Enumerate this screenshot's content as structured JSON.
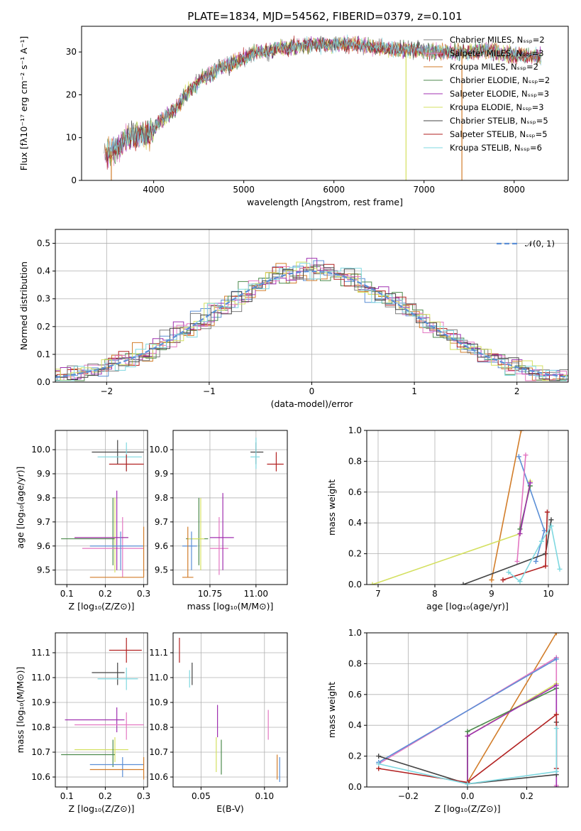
{
  "chart_data": [
    {
      "id": "spectrum",
      "type": "line",
      "title": "PLATE=1834, MJD=54562, FIBERID=0379, z=0.101",
      "xlabel": "wavelength [Angstrom, rest frame]",
      "ylabel": "Flux [fλ10⁻¹⁷ erg cm⁻² s⁻¹ A⁻¹]",
      "xlim": [
        3200,
        8600
      ],
      "ylim": [
        0,
        36
      ],
      "xticks": [
        4000,
        5000,
        6000,
        7000,
        8000
      ],
      "yticks": [
        0,
        10,
        20,
        30
      ],
      "grid": false,
      "legend_position": "right",
      "anchors": [
        [
          3450,
          6
        ],
        [
          3550,
          7
        ],
        [
          3650,
          8.5
        ],
        [
          3750,
          10.5
        ],
        [
          3850,
          11
        ],
        [
          3950,
          10.5
        ],
        [
          4050,
          13.5
        ],
        [
          4150,
          15
        ],
        [
          4250,
          17
        ],
        [
          4350,
          20
        ],
        [
          4450,
          22
        ],
        [
          4550,
          24
        ],
        [
          4650,
          25
        ],
        [
          4750,
          26.5
        ],
        [
          4850,
          27
        ],
        [
          4950,
          28
        ],
        [
          5050,
          29
        ],
        [
          5150,
          30
        ],
        [
          5250,
          30
        ],
        [
          5350,
          31
        ],
        [
          5500,
          31
        ],
        [
          5650,
          31.5
        ],
        [
          5800,
          32
        ],
        [
          5950,
          31.5
        ],
        [
          6100,
          32
        ],
        [
          6300,
          31.5
        ],
        [
          6500,
          31
        ],
        [
          6700,
          30.5
        ],
        [
          6900,
          30.5
        ],
        [
          7100,
          30
        ],
        [
          7300,
          30
        ],
        [
          7500,
          30
        ],
        [
          7700,
          30.5
        ],
        [
          7900,
          29.5
        ],
        [
          8100,
          29
        ],
        [
          8300,
          29
        ]
      ],
      "series": [
        {
          "name": "Chabrier MILES, Nₛₛₚ=2",
          "color": "#7f7f7f"
        },
        {
          "name": "Salpeter MILES, Nₛₛₚ=3",
          "color": "#e377c2"
        },
        {
          "name": "Kroupa MILES, Nₛₛₚ=2",
          "color": "#d27d2a"
        },
        {
          "name": "Chabrier ELODIE, Nₛₛₚ=2",
          "color": "#4c8a4c"
        },
        {
          "name": "Salpeter ELODIE, Nₛₛₚ=3",
          "color": "#a030b0"
        },
        {
          "name": "Kroupa ELODIE, Nₛₛₚ=3",
          "color": "#d4e060"
        },
        {
          "name": "Chabrier STELIB, Nₛₛₚ=5",
          "color": "#444444"
        },
        {
          "name": "Salpeter STELIB, Nₛₛₚ=5",
          "color": "#b22222"
        },
        {
          "name": "Kroupa STELIB, Nₛₛₚ=6",
          "color": "#7fd8e0"
        }
      ]
    },
    {
      "id": "residuals",
      "type": "step",
      "xlabel": "(data-model)/error",
      "ylabel": "Normed distribution",
      "xlim": [
        -2.5,
        2.5
      ],
      "ylim": [
        0,
        0.55
      ],
      "xticks": [
        -2,
        -1,
        0,
        1,
        2
      ],
      "yticks": [
        0.0,
        0.1,
        0.2,
        0.3,
        0.4,
        0.5
      ],
      "grid": true,
      "legend": [
        {
          "name": "𝒩(0, 1)",
          "color": "#5b8fd6",
          "style": "dashed"
        }
      ],
      "legend_position": "top-right",
      "bin_width": 0.1,
      "histogram_colors": [
        "#5b8fd6",
        "#d27d2a",
        "#4c8a4c",
        "#b22222",
        "#a030b0",
        "#e377c2",
        "#7f7f7f",
        "#d4e060",
        "#7fd8e0",
        "#444444"
      ]
    },
    {
      "id": "age-vs-z",
      "type": "errorbar",
      "xlabel": "Z [log₁₀(Z/Z⊙)]",
      "ylabel": "age  [log₁₀(age/yr)]",
      "xlim": [
        0.07,
        0.31
      ],
      "ylim": [
        9.44,
        10.08
      ],
      "xticks": [
        0.1,
        0.2,
        0.3
      ],
      "yticks": [
        9.5,
        9.6,
        9.7,
        9.8,
        9.9,
        10.0
      ],
      "grid": true,
      "points": [
        {
          "x": 0.232,
          "y": 9.99,
          "xe": [
            0.165,
            0.3
          ],
          "ye": [
            9.94,
            10.04
          ],
          "color": "#444444"
        },
        {
          "x": 0.255,
          "y": 9.97,
          "xe": [
            0.18,
            0.295
          ],
          "ye": [
            9.91,
            10.03
          ],
          "color": "#7fd8e0"
        },
        {
          "x": 0.255,
          "y": 9.94,
          "xe": [
            0.21,
            0.3
          ],
          "ye": [
            9.91,
            9.98
          ],
          "color": "#b22222"
        },
        {
          "x": 0.22,
          "y": 9.63,
          "xe": [
            0.085,
            0.225
          ],
          "ye": [
            9.52,
            9.8
          ],
          "color": "#4c8a4c"
        },
        {
          "x": 0.225,
          "y": 9.635,
          "xe": [
            0.12,
            0.26
          ],
          "ye": [
            9.49,
            9.8
          ],
          "color": "#d4e060"
        },
        {
          "x": 0.245,
          "y": 9.59,
          "xe": [
            0.14,
            0.3
          ],
          "ye": [
            9.47,
            9.72
          ],
          "color": "#e377c2"
        },
        {
          "x": 0.23,
          "y": 9.635,
          "xe": [
            0.12,
            0.26
          ],
          "ye": [
            9.5,
            9.83
          ],
          "color": "#a030b0"
        },
        {
          "x": 0.24,
          "y": 9.6,
          "xe": [
            0.16,
            0.3
          ],
          "ye": [
            9.5,
            9.66
          ],
          "color": "#5b8fd6"
        },
        {
          "x": 0.3,
          "y": 9.47,
          "xe": [
            0.16,
            0.3
          ],
          "ye": [
            9.47,
            9.68
          ],
          "color": "#d27d2a"
        }
      ]
    },
    {
      "id": "age-vs-mass",
      "type": "errorbar",
      "xlabel": "mass [log₁₀(M/M⊙)]",
      "xlim": [
        10.55,
        11.17
      ],
      "ylim": [
        9.44,
        10.08
      ],
      "xticks": [
        10.75,
        11.0
      ],
      "yticks": [
        9.5,
        9.6,
        9.7,
        9.8,
        9.9,
        10.0
      ],
      "grid": true,
      "points": [
        {
          "x": 11.0,
          "y": 9.99,
          "xe": [
            10.97,
            11.04
          ],
          "ye": [
            9.94,
            10.03
          ],
          "color": "#444444"
        },
        {
          "x": 11.0,
          "y": 9.97,
          "xe": [
            10.97,
            11.02
          ],
          "ye": [
            9.92,
            10.05
          ],
          "color": "#7fd8e0"
        },
        {
          "x": 11.11,
          "y": 9.94,
          "xe": [
            11.06,
            11.15
          ],
          "ye": [
            9.91,
            9.99
          ],
          "color": "#b22222"
        },
        {
          "x": 10.69,
          "y": 9.63,
          "xe": [
            10.62,
            10.74
          ],
          "ye": [
            9.52,
            9.8
          ],
          "color": "#4c8a4c"
        },
        {
          "x": 10.7,
          "y": 9.63,
          "xe": [
            10.63,
            10.72
          ],
          "ye": [
            9.5,
            9.8
          ],
          "color": "#d4e060"
        },
        {
          "x": 10.8,
          "y": 9.59,
          "xe": [
            10.75,
            10.85
          ],
          "ye": [
            9.48,
            9.72
          ],
          "color": "#e377c2"
        },
        {
          "x": 10.82,
          "y": 9.635,
          "xe": [
            10.75,
            10.88
          ],
          "ye": [
            9.5,
            9.82
          ],
          "color": "#a030b0"
        },
        {
          "x": 10.65,
          "y": 9.6,
          "xe": [
            10.6,
            10.68
          ],
          "ye": [
            9.5,
            9.66
          ],
          "color": "#5b8fd6"
        },
        {
          "x": 10.63,
          "y": 9.47,
          "xe": [
            10.6,
            10.66
          ],
          "ye": [
            9.47,
            9.68
          ],
          "color": "#d27d2a"
        }
      ]
    },
    {
      "id": "massweight-vs-age",
      "type": "line",
      "xlabel": "age  [log₁₀(age/yr)]",
      "ylabel": "mass weight",
      "xlim": [
        6.8,
        10.35
      ],
      "ylim": [
        0,
        1
      ],
      "xticks": [
        7,
        8,
        9,
        10
      ],
      "yticks": [
        0.0,
        0.2,
        0.4,
        0.6,
        0.8,
        1.0
      ],
      "grid": true,
      "series": [
        {
          "color": "#d27d2a",
          "x": [
            9.0,
            9.52
          ],
          "y": [
            0.03,
            1.0
          ]
        },
        {
          "color": "#d4e060",
          "x": [
            6.9,
            9.5,
            9.68
          ],
          "y": [
            0.0,
            0.33,
            0.67
          ]
        },
        {
          "color": "#5b8fd6",
          "x": [
            9.48,
            9.93,
            9.78
          ],
          "y": [
            0.83,
            0.35,
            0.15
          ]
        },
        {
          "color": "#e377c2",
          "x": [
            9.6,
            9.45
          ],
          "y": [
            0.84,
            0.15
          ]
        },
        {
          "color": "#4c8a4c",
          "x": [
            9.5,
            9.68
          ],
          "y": [
            0.36,
            0.64
          ]
        },
        {
          "color": "#a030b0",
          "x": [
            9.5,
            9.68
          ],
          "y": [
            0.33,
            0.66
          ]
        },
        {
          "color": "#444444",
          "x": [
            8.5,
            9.95,
            10.05
          ],
          "y": [
            0.0,
            0.2,
            0.42
          ]
        },
        {
          "color": "#b22222",
          "x": [
            9.2,
            9.95,
            9.98
          ],
          "y": [
            0.03,
            0.12,
            0.47
          ]
        },
        {
          "color": "#7fd8e0",
          "x": [
            9.3,
            9.5,
            9.88,
            10.05,
            10.2
          ],
          "y": [
            0.08,
            0.02,
            0.28,
            0.38,
            0.1
          ]
        }
      ]
    },
    {
      "id": "mass-vs-z",
      "type": "errorbar",
      "xlabel": "Z [log₁₀(Z/Z⊙)]",
      "ylabel": "mass [log₁₀(M/M⊙)]",
      "xlim": [
        0.07,
        0.31
      ],
      "ylim": [
        10.56,
        11.18
      ],
      "xticks": [
        0.1,
        0.2,
        0.3
      ],
      "yticks": [
        10.6,
        10.7,
        10.8,
        10.9,
        11.0,
        11.1
      ],
      "grid": true,
      "points": [
        {
          "x": 0.255,
          "y": 11.11,
          "xe": [
            0.21,
            0.295
          ],
          "ye": [
            11.06,
            11.16
          ],
          "color": "#b22222"
        },
        {
          "x": 0.232,
          "y": 11.02,
          "xe": [
            0.165,
            0.25
          ],
          "ye": [
            10.97,
            11.06
          ],
          "color": "#444444"
        },
        {
          "x": 0.255,
          "y": 10.995,
          "xe": [
            0.18,
            0.285
          ],
          "ye": [
            10.95,
            11.04
          ],
          "color": "#7fd8e0"
        },
        {
          "x": 0.23,
          "y": 10.83,
          "xe": [
            0.095,
            0.25
          ],
          "ye": [
            10.78,
            10.88
          ],
          "color": "#a030b0"
        },
        {
          "x": 0.255,
          "y": 10.81,
          "xe": [
            0.12,
            0.3
          ],
          "ye": [
            10.75,
            10.86
          ],
          "color": "#e377c2"
        },
        {
          "x": 0.225,
          "y": 10.71,
          "xe": [
            0.12,
            0.26
          ],
          "ye": [
            10.66,
            10.76
          ],
          "color": "#d4e060"
        },
        {
          "x": 0.22,
          "y": 10.69,
          "xe": [
            0.085,
            0.225
          ],
          "ye": [
            10.64,
            10.75
          ],
          "color": "#4c8a4c"
        },
        {
          "x": 0.245,
          "y": 10.65,
          "xe": [
            0.16,
            0.3
          ],
          "ye": [
            10.6,
            10.68
          ],
          "color": "#5b8fd6"
        },
        {
          "x": 0.3,
          "y": 10.63,
          "xe": [
            0.16,
            0.3
          ],
          "ye": [
            10.59,
            10.68
          ],
          "color": "#d27d2a"
        }
      ]
    },
    {
      "id": "mass-vs-ebv",
      "type": "errorbar",
      "xlabel": "E(B-V)",
      "xlim": [
        0.028,
        0.118
      ],
      "ylim": [
        10.56,
        11.18
      ],
      "xticks": [
        0.05,
        0.1
      ],
      "yticks": [
        10.6,
        10.7,
        10.8,
        10.9,
        11.0,
        11.1
      ],
      "grid": true,
      "points": [
        {
          "x": 0.033,
          "y": 11.11,
          "ye": [
            11.06,
            11.16
          ],
          "color": "#b22222"
        },
        {
          "x": 0.043,
          "y": 11.02,
          "ye": [
            10.97,
            11.06
          ],
          "color": "#444444"
        },
        {
          "x": 0.041,
          "y": 10.995,
          "ye": [
            10.96,
            11.03
          ],
          "color": "#7fd8e0"
        },
        {
          "x": 0.063,
          "y": 10.83,
          "ye": [
            10.76,
            10.89
          ],
          "color": "#a030b0"
        },
        {
          "x": 0.103,
          "y": 10.81,
          "ye": [
            10.75,
            10.87
          ],
          "color": "#e377c2"
        },
        {
          "x": 0.062,
          "y": 10.71,
          "ye": [
            10.62,
            10.76
          ],
          "color": "#d4e060"
        },
        {
          "x": 0.066,
          "y": 10.69,
          "ye": [
            10.61,
            10.75
          ],
          "color": "#4c8a4c"
        },
        {
          "x": 0.112,
          "y": 10.63,
          "ye": [
            10.58,
            10.68
          ],
          "color": "#5b8fd6"
        },
        {
          "x": 0.11,
          "y": 10.63,
          "ye": [
            10.59,
            10.69
          ],
          "color": "#d27d2a"
        }
      ]
    },
    {
      "id": "massweight-vs-z",
      "type": "line",
      "xlabel": "Z [log₁₀(Z/Z⊙)]",
      "ylabel": "mass weight",
      "xlim": [
        -0.34,
        0.34
      ],
      "ylim": [
        0,
        1
      ],
      "xticks": [
        -0.2,
        0.0,
        0.2
      ],
      "yticks": [
        0.0,
        0.2,
        0.4,
        0.6,
        0.8,
        1.0
      ],
      "grid": true,
      "series": [
        {
          "color": "#d27d2a",
          "x": [
            0.0,
            0.3
          ],
          "y": [
            0.03,
            1.0
          ]
        },
        {
          "color": "#e377c2",
          "x": [
            -0.3,
            0.3,
            0.3
          ],
          "y": [
            0.15,
            0.84,
            0.01
          ]
        },
        {
          "color": "#5b8fd6",
          "x": [
            -0.3,
            0.3
          ],
          "y": [
            0.16,
            0.83
          ]
        },
        {
          "color": "#d4e060",
          "x": [
            0.0,
            0.0,
            0.3
          ],
          "y": [
            0.02,
            0.33,
            0.67
          ]
        },
        {
          "color": "#4c8a4c",
          "x": [
            0.0,
            0.0,
            0.3
          ],
          "y": [
            0.03,
            0.36,
            0.64
          ]
        },
        {
          "color": "#a030b0",
          "x": [
            0.0,
            0.0,
            0.3,
            0.3
          ],
          "y": [
            0.02,
            0.33,
            0.66,
            0.0
          ]
        },
        {
          "color": "#444444",
          "x": [
            -0.3,
            0.0,
            0.3,
            0.3
          ],
          "y": [
            0.2,
            0.02,
            0.08,
            0.42
          ]
        },
        {
          "color": "#b22222",
          "x": [
            -0.3,
            0.0,
            0.3,
            0.3
          ],
          "y": [
            0.12,
            0.03,
            0.47,
            0.12
          ]
        },
        {
          "color": "#7fd8e0",
          "x": [
            -0.3,
            0.0,
            0.3,
            0.3
          ],
          "y": [
            0.15,
            0.02,
            0.1,
            0.38
          ]
        }
      ]
    }
  ]
}
